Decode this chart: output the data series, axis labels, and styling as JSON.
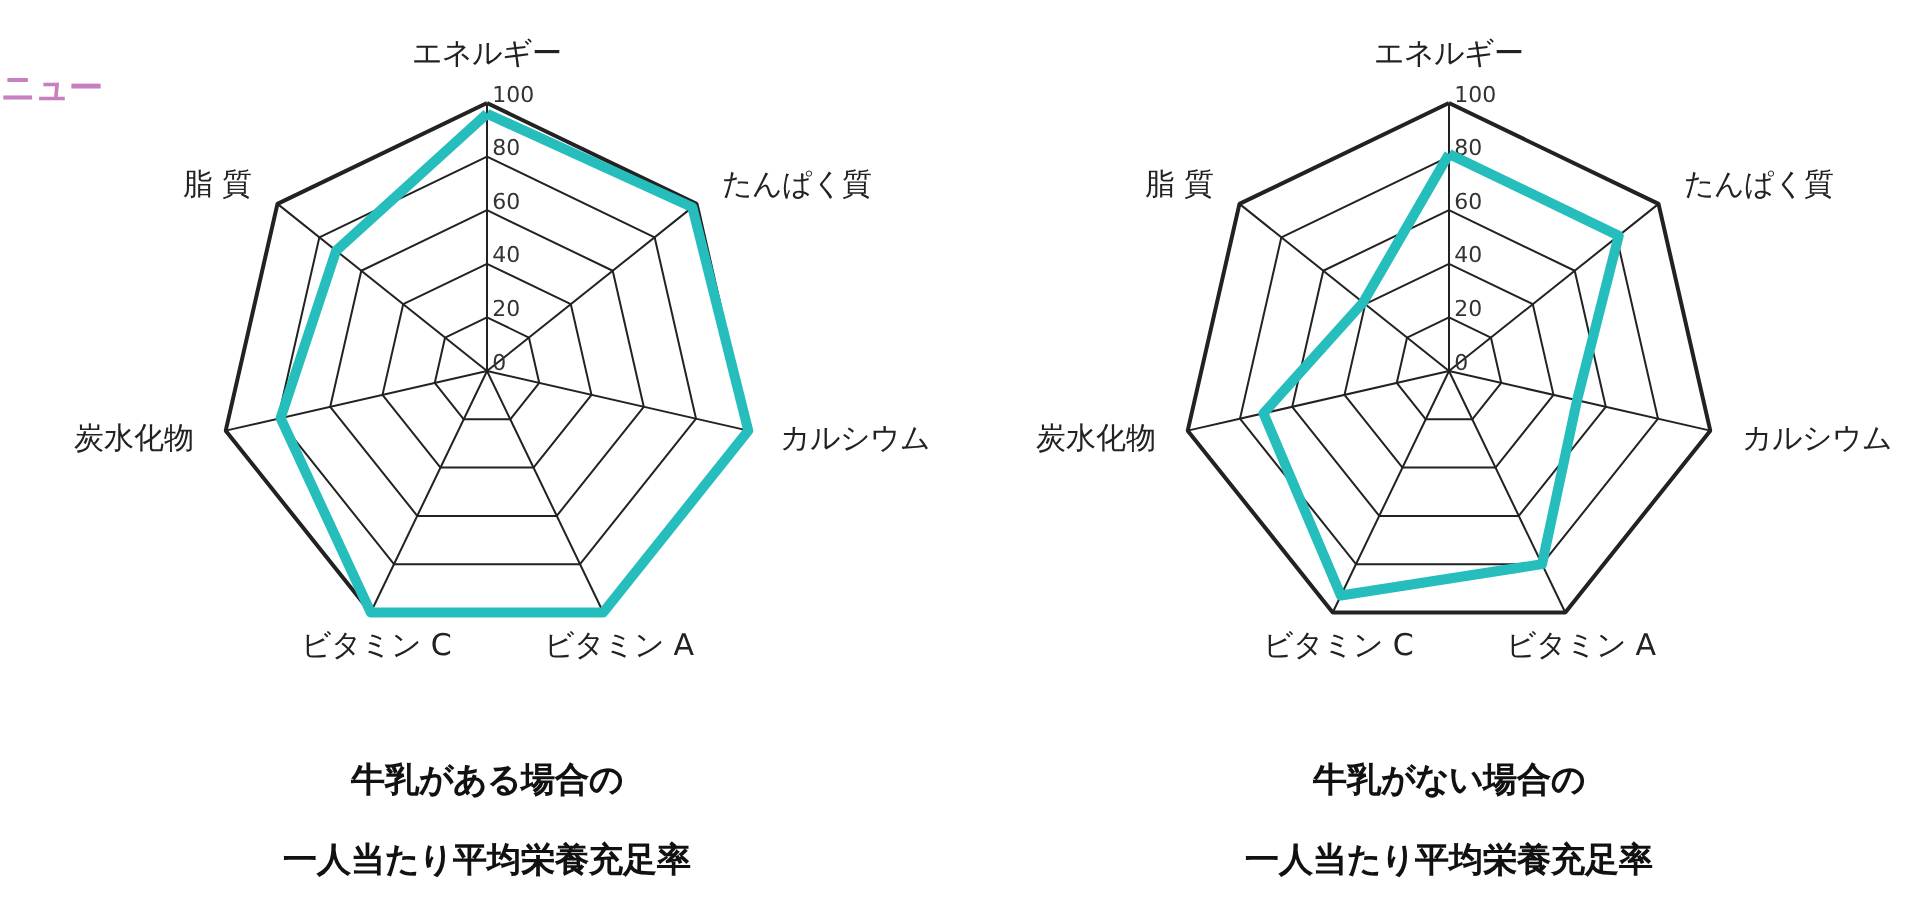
{
  "chart_data": [
    {
      "type": "radar",
      "title": "牛乳がある場合の",
      "subtitle": "一人当たり平均栄養充足率",
      "categories": [
        "エネルギー",
        "たんぱく質",
        "カルシウム",
        "ビタミン A",
        "ビタミン C",
        "炭水化物",
        "脂 質"
      ],
      "series": [
        {
          "color": "#26bdbd",
          "values": [
            96,
            98,
            100,
            100,
            100,
            79,
            72
          ]
        }
      ],
      "ylim": [
        0,
        100
      ],
      "yticks": [
        0,
        20,
        40,
        60,
        80,
        100
      ],
      "annotations": [
        "ニュー"
      ]
    },
    {
      "type": "radar",
      "title": "牛乳がない場合の",
      "subtitle": "一人当たり平均栄養充足率",
      "categories": [
        "エネルギー",
        "たんぱく質",
        "カルシウム",
        "ビタミン A",
        "ビタミン C",
        "炭水化物",
        "脂 質"
      ],
      "series": [
        {
          "color": "#26bdbd",
          "values": [
            81,
            81,
            49,
            80,
            93,
            71,
            41
          ]
        }
      ],
      "ylim": [
        0,
        100
      ],
      "yticks": [
        0,
        20,
        40,
        60,
        80,
        100
      ]
    }
  ]
}
